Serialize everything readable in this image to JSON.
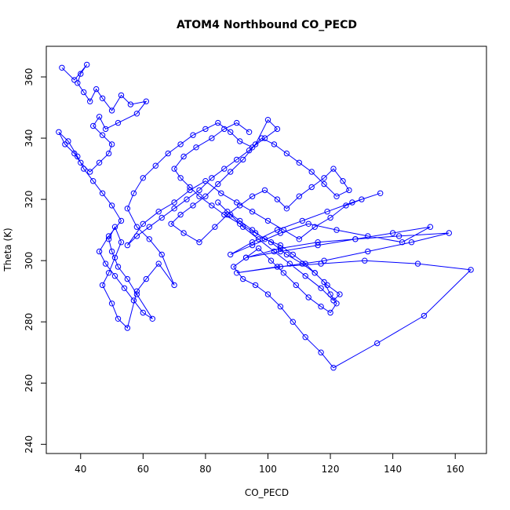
{
  "chart_data": {
    "type": "line",
    "title": "ATOM4 Northbound CO_PECD",
    "xlabel": "CO_PECD",
    "ylabel": "Theta (K)",
    "xlim": [
      29,
      170
    ],
    "ylim": [
      237,
      370
    ],
    "xticks": [
      40,
      60,
      80,
      100,
      120,
      140,
      160
    ],
    "yticks": [
      240,
      260,
      280,
      300,
      320,
      340,
      360
    ],
    "grid": false,
    "legend": "none",
    "marker": "open-circle",
    "color": "#0000ff",
    "x": [
      34,
      38,
      42,
      40,
      39,
      41,
      43,
      45,
      47,
      50,
      53,
      56,
      61,
      58,
      52,
      48,
      46,
      44,
      47,
      50,
      49,
      46,
      43,
      40,
      38,
      35,
      33,
      36,
      39,
      41,
      44,
      47,
      50,
      53,
      49,
      46,
      48,
      51,
      54,
      57,
      60,
      63,
      58,
      55,
      52,
      50,
      49,
      51,
      53,
      51,
      49,
      47,
      50,
      52,
      55,
      58,
      61,
      65,
      70,
      66,
      62,
      58,
      55,
      57,
      60,
      64,
      68,
      72,
      76,
      80,
      84,
      88,
      91,
      95,
      99,
      103,
      100,
      96,
      92,
      88,
      84,
      80,
      76,
      72,
      69,
      73,
      78,
      83,
      87,
      91,
      95,
      99,
      103,
      106,
      110,
      114,
      118,
      121,
      124,
      126,
      122,
      118,
      114,
      110,
      106,
      102,
      98,
      94,
      90,
      86,
      82,
      78,
      74,
      70,
      66,
      62,
      58,
      55,
      60,
      65,
      70,
      75,
      80,
      85,
      90,
      95,
      100,
      105,
      110,
      115,
      120,
      125,
      130,
      136,
      127,
      119,
      111,
      103,
      95,
      88,
      95,
      104,
      113,
      122,
      132,
      143,
      152,
      140,
      128,
      116,
      104,
      93,
      104,
      116,
      128,
      142,
      158,
      146,
      132,
      118,
      104,
      90,
      103,
      117,
      131,
      148,
      165,
      150,
      135,
      121,
      117,
      112,
      108,
      104,
      100,
      96,
      92,
      89,
      93,
      97,
      101,
      105,
      109,
      113,
      117,
      120,
      122,
      120,
      118,
      115,
      112,
      108,
      104,
      99,
      95,
      91,
      87,
      84,
      88,
      92,
      97,
      102,
      107,
      112,
      117,
      121,
      123,
      119,
      115,
      111,
      106,
      101,
      96,
      91,
      86,
      82,
      78,
      75,
      72,
      70,
      73,
      77,
      82,
      86,
      90,
      94
    ],
    "y": [
      363,
      359,
      364,
      361,
      358,
      355,
      352,
      356,
      353,
      349,
      354,
      351,
      352,
      348,
      345,
      343,
      347,
      344,
      341,
      338,
      335,
      332,
      329,
      332,
      335,
      338,
      342,
      339,
      334,
      330,
      326,
      322,
      318,
      313,
      308,
      303,
      299,
      295,
      291,
      287,
      283,
      281,
      289,
      294,
      298,
      303,
      307,
      311,
      306,
      301,
      296,
      292,
      286,
      281,
      278,
      290,
      294,
      299,
      292,
      302,
      307,
      311,
      317,
      322,
      327,
      331,
      335,
      338,
      341,
      343,
      345,
      342,
      339,
      337,
      340,
      343,
      346,
      338,
      333,
      329,
      325,
      321,
      318,
      315,
      312,
      309,
      306,
      311,
      315,
      318,
      321,
      323,
      320,
      317,
      321,
      324,
      327,
      330,
      326,
      323,
      321,
      325,
      329,
      332,
      335,
      338,
      340,
      336,
      333,
      330,
      327,
      323,
      320,
      317,
      314,
      311,
      308,
      305,
      312,
      316,
      319,
      323,
      326,
      322,
      319,
      316,
      313,
      310,
      307,
      311,
      314,
      318,
      320,
      322,
      319,
      316,
      313,
      310,
      306,
      302,
      305,
      309,
      312,
      310,
      308,
      306,
      311,
      309,
      307,
      305,
      303,
      301,
      304,
      306,
      307,
      308,
      309,
      306,
      303,
      300,
      298,
      296,
      298,
      299,
      300,
      299,
      297,
      282,
      273,
      265,
      270,
      275,
      280,
      285,
      289,
      292,
      294,
      298,
      301,
      304,
      300,
      296,
      292,
      288,
      285,
      283,
      286,
      289,
      293,
      296,
      299,
      302,
      305,
      307,
      310,
      313,
      316,
      319,
      315,
      311,
      307,
      303,
      299,
      295,
      291,
      287,
      289,
      292,
      296,
      299,
      302,
      306,
      309,
      312,
      315,
      318,
      321,
      324,
      327,
      330,
      334,
      337,
      340,
      343,
      345,
      342
    ]
  }
}
